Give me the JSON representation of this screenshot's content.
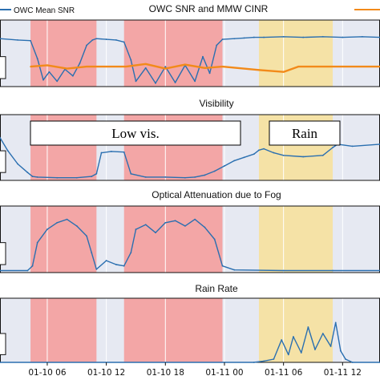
{
  "legend": {
    "owc_label": "OWC Mean SNR",
    "owc_color": "#2a6fb0",
    "mmw_color": "#f28a1a"
  },
  "annotations": {
    "low_vis": "Low vis.",
    "rain": "Rain"
  },
  "colors": {
    "low_vis_band": "#f3a6a6",
    "rain_band": "#f5e2a6",
    "panel_bg": "#e6e9f2",
    "series": "#2a6fb0",
    "secondary": "#f28a1a"
  },
  "chart_data": [
    {
      "type": "line",
      "title": "OWC SNR and MMW CINR",
      "x_ticks": [
        "01-10 06",
        "01-10 12",
        "01-10 18",
        "01-11 00",
        "01-11 06",
        "01-11 12"
      ],
      "x_tick_hours": [
        6,
        12,
        18,
        24,
        30,
        36
      ],
      "xlim": [
        1.2,
        39.8
      ],
      "shaded_regions": [
        {
          "label": "Low vis.",
          "start": 4.3,
          "end": 11.0
        },
        {
          "label": "Low vis.",
          "start": 13.8,
          "end": 23.8
        },
        {
          "label": "Rain",
          "start": 27.5,
          "end": 35.0
        }
      ],
      "series": [
        {
          "name": "OWC Mean SNR",
          "x": [
            1.2,
            3,
            4.3,
            5,
            5.6,
            6.2,
            7,
            7.8,
            8.6,
            9.3,
            10,
            10.6,
            11,
            12,
            13,
            13.8,
            14.5,
            15,
            16,
            17,
            18,
            19,
            20,
            21,
            21.8,
            22.5,
            23.2,
            23.8,
            25,
            26,
            27,
            28,
            30,
            32,
            34,
            36,
            38,
            39.8
          ],
          "y": [
            0.72,
            0.7,
            0.69,
            0.42,
            0.1,
            0.22,
            0.08,
            0.26,
            0.16,
            0.35,
            0.62,
            0.7,
            0.72,
            0.71,
            0.7,
            0.67,
            0.4,
            0.08,
            0.28,
            0.05,
            0.3,
            0.06,
            0.32,
            0.08,
            0.45,
            0.2,
            0.62,
            0.71,
            0.72,
            0.73,
            0.74,
            0.74,
            0.75,
            0.74,
            0.75,
            0.74,
            0.75,
            0.74
          ]
        },
        {
          "name": "MMW CINR",
          "x": [
            4.3,
            6,
            8,
            10,
            11,
            12,
            13,
            14,
            16,
            18,
            20,
            22,
            23.8,
            27.5,
            30,
            31.5,
            33,
            35,
            39.8
          ],
          "y": [
            0.3,
            0.32,
            0.27,
            0.3,
            0.3,
            0.3,
            0.3,
            0.3,
            0.34,
            0.27,
            0.33,
            0.28,
            0.3,
            0.25,
            0.22,
            0.3,
            0.3,
            0.3,
            0.3
          ]
        }
      ]
    },
    {
      "type": "line",
      "title": "Visibility",
      "series": [
        {
          "x": [
            1.2,
            2,
            3,
            4,
            4.5,
            5,
            7,
            9,
            10.5,
            11,
            11.5,
            12.5,
            13.8,
            14.5,
            16,
            18,
            20,
            21,
            22,
            23,
            24,
            25,
            26,
            27,
            27.5,
            28,
            29,
            30,
            32,
            34,
            35,
            35.5,
            37,
            39.8
          ],
          "y": [
            0.65,
            0.45,
            0.25,
            0.12,
            0.06,
            0.05,
            0.04,
            0.04,
            0.06,
            0.1,
            0.42,
            0.44,
            0.43,
            0.1,
            0.05,
            0.05,
            0.04,
            0.05,
            0.08,
            0.14,
            0.22,
            0.3,
            0.35,
            0.4,
            0.46,
            0.48,
            0.42,
            0.38,
            0.36,
            0.38,
            0.5,
            0.55,
            0.52,
            0.55
          ]
        }
      ]
    },
    {
      "type": "line",
      "title": "Optical Attenuation due to Fog",
      "series": [
        {
          "x": [
            1.2,
            4,
            4.5,
            5,
            6,
            7,
            8,
            9,
            10,
            10.5,
            11,
            12,
            13,
            13.8,
            14.5,
            15,
            16,
            17,
            18,
            19,
            20,
            21,
            22,
            23,
            23.8,
            25,
            30,
            35,
            39.8
          ],
          "y": [
            0.03,
            0.03,
            0.1,
            0.45,
            0.65,
            0.75,
            0.8,
            0.7,
            0.55,
            0.3,
            0.05,
            0.18,
            0.12,
            0.1,
            0.3,
            0.65,
            0.72,
            0.6,
            0.75,
            0.78,
            0.7,
            0.8,
            0.68,
            0.5,
            0.1,
            0.04,
            0.03,
            0.03,
            0.03
          ]
        }
      ]
    },
    {
      "type": "line",
      "title": "Rain Rate",
      "series": [
        {
          "x": [
            1.2,
            27,
            28,
            29,
            29.8,
            30.5,
            31,
            31.8,
            32.5,
            33.2,
            34,
            34.8,
            35.3,
            35.8,
            36.3,
            37,
            39.8
          ],
          "y": [
            0.0,
            0.0,
            0.02,
            0.05,
            0.35,
            0.12,
            0.4,
            0.15,
            0.55,
            0.2,
            0.45,
            0.25,
            0.62,
            0.18,
            0.05,
            0.0,
            0.0
          ]
        }
      ]
    }
  ]
}
